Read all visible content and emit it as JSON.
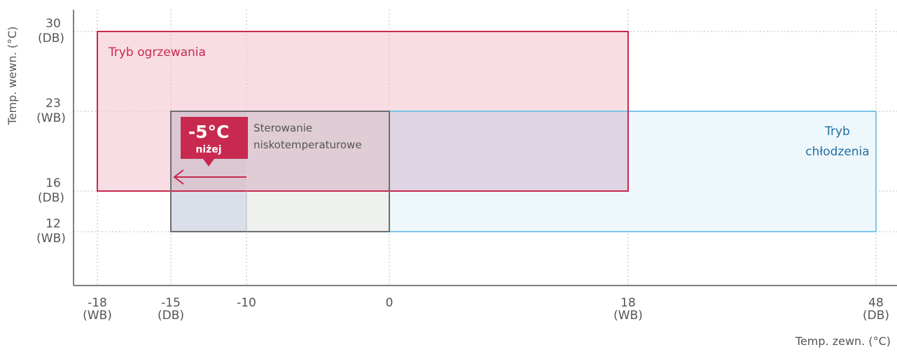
{
  "chart_data": {
    "type": "area",
    "xlabel": "Temp. zewn. (°C)",
    "ylabel": "Temp. wewn. (°C)",
    "x_ticks": [
      {
        "value": -18,
        "label": "-18",
        "sub": "(WB)"
      },
      {
        "value": -15,
        "label": "-15",
        "sub": "(DB)"
      },
      {
        "value": -10,
        "label": "-10",
        "sub": ""
      },
      {
        "value": 0,
        "label": "0",
        "sub": ""
      },
      {
        "value": 18,
        "label": "18",
        "sub": "(WB)"
      },
      {
        "value": 48,
        "label": "48",
        "sub": "(DB)"
      }
    ],
    "y_ticks": [
      {
        "value": 30,
        "label": "30",
        "sub": "(DB)"
      },
      {
        "value": 23,
        "label": "23",
        "sub": "(WB)"
      },
      {
        "value": 16,
        "label": "16",
        "sub": "(DB)"
      },
      {
        "value": 12,
        "label": "12",
        "sub": "(WB)"
      }
    ],
    "regions": [
      {
        "name": "Tryb ogrzewania",
        "x": [
          -18,
          18
        ],
        "y": [
          16,
          30
        ],
        "fill": "#f6dde3",
        "stroke": "#c8294f",
        "label_color": "#c8294f"
      },
      {
        "name": "Tryb chłodzenia",
        "x": [
          0,
          48
        ],
        "y": [
          12,
          23
        ],
        "fill": "#eef7fb",
        "stroke": "#7cc5ea",
        "label_color": "#1f6fa6"
      },
      {
        "name": "Sterowanie niskotemperaturowe",
        "x": [
          -15,
          0
        ],
        "y": [
          12,
          23
        ],
        "stroke": "#6e6e6e"
      }
    ],
    "extension": {
      "x": [
        -15,
        -10
      ],
      "amount_label": "-5°C",
      "amount_sub": "niżej"
    }
  },
  "labels": {
    "heating_line1": "Tryb ogrzewania",
    "cooling_line1": "Tryb",
    "cooling_line2": "chłodzenia",
    "low_temp_line1": "Sterowanie",
    "low_temp_line2": "niskotemperaturowe",
    "badge_big": "-5°C",
    "badge_small": "niżej"
  },
  "colors": {
    "heating": "#c8294f",
    "cooling": "#7cc5ea",
    "low_temp": "#6e6e6e",
    "badge": "#c8294f",
    "axis": "#555555",
    "grid": "#bbbbbb"
  }
}
